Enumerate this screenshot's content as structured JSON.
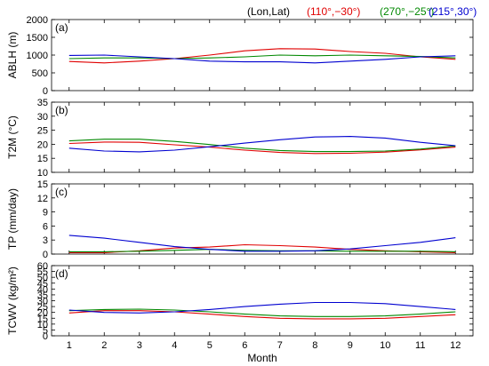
{
  "legend": {
    "header": "(Lon,Lat)",
    "entries": [
      {
        "label": "(110°,−30°)",
        "color": "#e00000"
      },
      {
        "label": "(270°,−25°)",
        "color": "#008800"
      },
      {
        "label": "(215°,30°)",
        "color": "#0000d0"
      }
    ]
  },
  "chart_data": [
    {
      "type": "line",
      "panel": "(a)",
      "ylabel": "ABLH (m)",
      "xlabel": "",
      "ylim": [
        0,
        2000
      ],
      "yticks": [
        0,
        500,
        1000,
        1500,
        2000
      ],
      "xlim": [
        0.5,
        12.5
      ],
      "x": [
        1,
        2,
        3,
        4,
        5,
        6,
        7,
        8,
        9,
        10,
        11,
        12
      ],
      "series": [
        {
          "name": "(110°,−30°)",
          "color": "#e00000",
          "values": [
            820,
            780,
            830,
            900,
            1000,
            1120,
            1180,
            1170,
            1100,
            1050,
            950,
            880
          ]
        },
        {
          "name": "(270°,−25°)",
          "color": "#008800",
          "values": [
            900,
            920,
            920,
            900,
            920,
            950,
            1000,
            980,
            1000,
            980,
            960,
            920
          ]
        },
        {
          "name": "(215°,30°)",
          "color": "#0000d0",
          "values": [
            990,
            1000,
            950,
            900,
            830,
            810,
            810,
            780,
            830,
            880,
            950,
            980
          ]
        }
      ]
    },
    {
      "type": "line",
      "panel": "(b)",
      "ylabel": "T2M (°C)",
      "xlabel": "",
      "ylim": [
        10,
        35
      ],
      "yticks": [
        10,
        15,
        20,
        25,
        30,
        35
      ],
      "xlim": [
        0.5,
        12.5
      ],
      "x": [
        1,
        2,
        3,
        4,
        5,
        6,
        7,
        8,
        9,
        10,
        11,
        12
      ],
      "series": [
        {
          "name": "(110°,−30°)",
          "color": "#e00000",
          "values": [
            20.3,
            20.8,
            20.7,
            19.8,
            19.0,
            17.9,
            17.1,
            16.7,
            16.8,
            17.2,
            18.0,
            19.0
          ]
        },
        {
          "name": "(270°,−25°)",
          "color": "#008800",
          "values": [
            21.2,
            21.8,
            21.8,
            21.0,
            19.9,
            18.6,
            17.8,
            17.4,
            17.4,
            17.6,
            18.3,
            19.4
          ]
        },
        {
          "name": "(215°,30°)",
          "color": "#0000d0",
          "values": [
            18.6,
            17.6,
            17.3,
            17.9,
            19.1,
            20.4,
            21.6,
            22.6,
            22.8,
            22.2,
            20.7,
            19.5
          ]
        }
      ]
    },
    {
      "type": "line",
      "panel": "(c)",
      "ylabel": "TP (mm/day)",
      "xlabel": "",
      "ylim": [
        0,
        15
      ],
      "yticks": [
        0,
        3,
        6,
        9,
        12,
        15
      ],
      "xlim": [
        0.5,
        12.5
      ],
      "x": [
        1,
        2,
        3,
        4,
        5,
        6,
        7,
        8,
        9,
        10,
        11,
        12
      ],
      "series": [
        {
          "name": "(110°,−30°)",
          "color": "#e00000",
          "values": [
            0.3,
            0.3,
            0.7,
            1.3,
            1.5,
            2.0,
            1.8,
            1.5,
            1.0,
            0.7,
            0.5,
            0.3
          ]
        },
        {
          "name": "(270°,−25°)",
          "color": "#008800",
          "values": [
            0.5,
            0.5,
            0.6,
            0.8,
            1.0,
            0.8,
            0.7,
            0.7,
            0.6,
            0.6,
            0.6,
            0.5
          ]
        },
        {
          "name": "(215°,30°)",
          "color": "#0000d0",
          "values": [
            4.0,
            3.4,
            2.5,
            1.6,
            1.0,
            0.6,
            0.6,
            0.7,
            1.1,
            1.8,
            2.5,
            3.5
          ]
        }
      ]
    },
    {
      "type": "line",
      "panel": "(d)",
      "ylabel": "TCWV (kg/m²)",
      "xlabel": "Month",
      "ylim": [
        0,
        60
      ],
      "yticks": [
        0,
        5,
        10,
        15,
        20,
        25,
        30,
        35,
        40,
        45,
        50,
        55,
        60
      ],
      "xlim": [
        0.5,
        12.5
      ],
      "x": [
        1,
        2,
        3,
        4,
        5,
        6,
        7,
        8,
        9,
        10,
        11,
        12
      ],
      "xticks": [
        1,
        2,
        3,
        4,
        5,
        6,
        7,
        8,
        9,
        10,
        11,
        12
      ],
      "series": [
        {
          "name": "(110°,−30°)",
          "color": "#e00000",
          "values": [
            19.5,
            21.5,
            21.5,
            20.5,
            18.5,
            16.5,
            15.0,
            14.5,
            14.5,
            15.0,
            16.5,
            18.0
          ]
        },
        {
          "name": "(270°,−25°)",
          "color": "#008800",
          "values": [
            21.5,
            22.5,
            22.8,
            22.0,
            20.5,
            18.5,
            17.0,
            16.5,
            16.5,
            17.0,
            18.5,
            20.5
          ]
        },
        {
          "name": "(215°,30°)",
          "color": "#0000d0",
          "values": [
            22.0,
            20.0,
            19.5,
            20.5,
            22.5,
            25.0,
            27.0,
            28.5,
            28.5,
            27.5,
            25.0,
            22.5
          ]
        }
      ]
    }
  ]
}
